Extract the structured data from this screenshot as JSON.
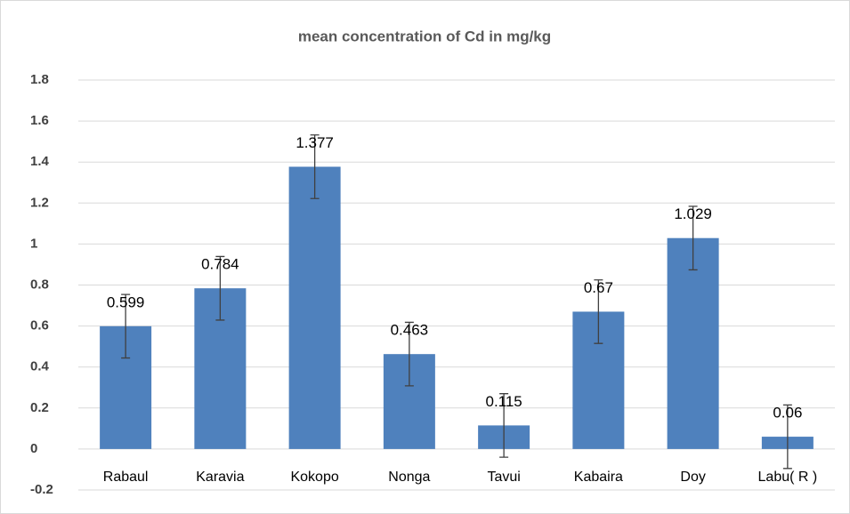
{
  "chart_data": {
    "type": "bar",
    "title": "mean concentration of Cd in mg/kg",
    "categories": [
      "Rabaul",
      "Karavia",
      "Kokopo",
      "Nonga",
      "Tavui",
      "Kabaira",
      "Doy",
      "Labu( R )"
    ],
    "values": [
      0.599,
      0.784,
      1.377,
      0.463,
      0.115,
      0.67,
      1.029,
      0.06
    ],
    "errors": [
      0.155,
      0.155,
      0.155,
      0.155,
      0.155,
      0.155,
      0.155,
      0.155
    ],
    "color": "#4f81bd",
    "ylim": [
      -0.2,
      1.8
    ],
    "yticks": [
      -0.2,
      0,
      0.2,
      0.4,
      0.6,
      0.8,
      1,
      1.2,
      1.4,
      1.6,
      1.8
    ],
    "grid": true
  }
}
